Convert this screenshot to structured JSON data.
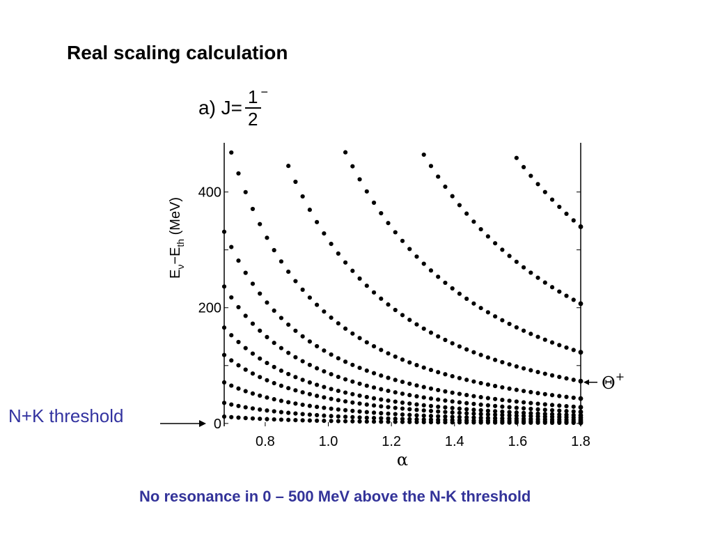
{
  "slide": {
    "title": "Real scaling calculation",
    "footer": "No resonance in 0 – 500 MeV above the N-K threshold",
    "threshold_label": "N+K threshold"
  },
  "panel": {
    "prefix": "a) J=",
    "numerator": "1",
    "denominator": "2",
    "parity": "−"
  },
  "chart_data": {
    "type": "scatter",
    "xlim": [
      0.67,
      1.8
    ],
    "ylim": [
      -5,
      485
    ],
    "x_ticks": [
      0.8,
      1.0,
      1.2,
      1.4,
      1.6,
      1.8
    ],
    "x_tick_labels": [
      "0.8",
      "1.0",
      "1.2",
      "1.4",
      "1.6",
      "1.8"
    ],
    "y_ticks": [
      0,
      200,
      400
    ],
    "y_tick_labels": [
      "0",
      "200",
      "400"
    ],
    "xlabel": "α",
    "ylabel": {
      "main": "E",
      "sub1": "ν",
      "mid": "−E",
      "sub2": "th",
      "unit": "(MeV)"
    },
    "annotations": [
      {
        "text": "Θ",
        "sup": "+",
        "y": 100
      }
    ],
    "series_exponent": 2.5,
    "series_y_at_1_8": [
      1,
      3,
      6,
      10,
      14,
      20,
      28,
      43,
      73,
      123,
      207,
      340
    ],
    "series": [
      {
        "values_at_1_8": 1
      },
      {
        "values_at_1_8": 3
      },
      {
        "values_at_1_8": 6
      },
      {
        "values_at_1_8": 10
      },
      {
        "values_at_1_8": 14
      },
      {
        "values_at_1_8": 20
      },
      {
        "values_at_1_8": 28
      },
      {
        "values_at_1_8": 43
      },
      {
        "values_at_1_8": 73
      },
      {
        "values_at_1_8": 123
      },
      {
        "values_at_1_8": 207
      },
      {
        "values_at_1_8": 340
      }
    ]
  }
}
